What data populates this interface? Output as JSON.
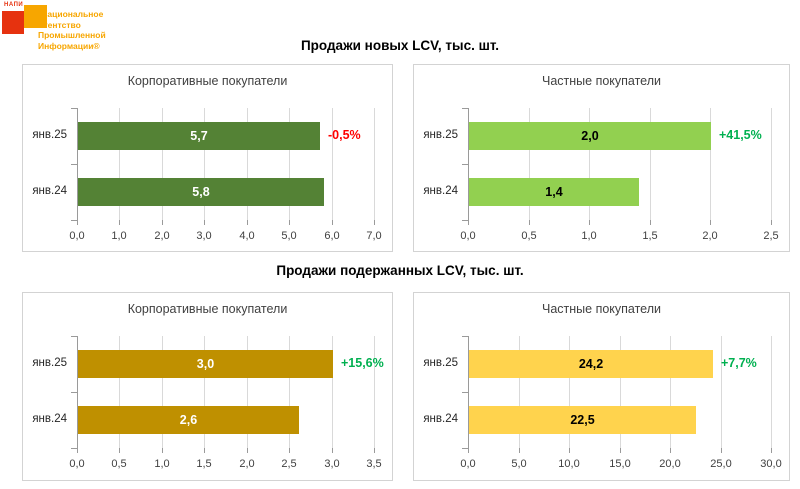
{
  "logo": {
    "mark_text": "НАПИ",
    "lines": [
      "Национальное",
      "Агентство",
      "Промышленной",
      "Информации®"
    ],
    "red": "#E6320F",
    "orange": "#F7A600"
  },
  "sections": [
    {
      "title": "Продажи новых LCV, тыс. шт."
    },
    {
      "title": "Продажи подержанных LCV, тыс. шт."
    }
  ],
  "chart_data": [
    {
      "type": "bar",
      "section": "Продажи новых LCV, тыс. шт.",
      "title": "Корпоративные покупатели",
      "categories": [
        "янв.25",
        "янв.24"
      ],
      "values": [
        5.7,
        5.8
      ],
      "value_labels": [
        "5,7",
        "5,8"
      ],
      "change_label": "-0,5%",
      "change_color": "#FF0000",
      "bar_color": "#548235",
      "value_text_color": "#FFFFFF",
      "xlim": [
        0,
        7
      ],
      "tick_labels": [
        "0,0",
        "1,0",
        "2,0",
        "3,0",
        "4,0",
        "5,0",
        "6,0",
        "7,0"
      ],
      "grid": true,
      "legend": "none"
    },
    {
      "type": "bar",
      "section": "Продажи новых LCV, тыс. шт.",
      "title": "Частные покупатели",
      "categories": [
        "янв.25",
        "янв.24"
      ],
      "values": [
        2.0,
        1.4
      ],
      "value_labels": [
        "2,0",
        "1,4"
      ],
      "change_label": "+41,5%",
      "change_color": "#00B050",
      "bar_color": "#92D050",
      "value_text_color": "#000000",
      "xlim": [
        0,
        2.5
      ],
      "tick_labels": [
        "0,0",
        "0,5",
        "1,0",
        "1,5",
        "2,0",
        "2,5"
      ],
      "grid": true,
      "legend": "none"
    },
    {
      "type": "bar",
      "section": "Продажи подержанных LCV, тыс. шт.",
      "title": "Корпоративные покупатели",
      "categories": [
        "янв.25",
        "янв.24"
      ],
      "values": [
        3.0,
        2.6
      ],
      "value_labels": [
        "3,0",
        "2,6"
      ],
      "change_label": "+15,6%",
      "change_color": "#00B050",
      "bar_color": "#BF9000",
      "value_text_color": "#FFFFFF",
      "xlim": [
        0,
        3.5
      ],
      "tick_labels": [
        "0,0",
        "0,5",
        "1,0",
        "1,5",
        "2,0",
        "2,5",
        "3,0",
        "3,5"
      ],
      "grid": true,
      "legend": "none"
    },
    {
      "type": "bar",
      "section": "Продажи подержанных LCV, тыс. шт.",
      "title": "Частные покупатели",
      "categories": [
        "янв.25",
        "янв.24"
      ],
      "values": [
        24.2,
        22.5
      ],
      "value_labels": [
        "24,2",
        "22,5"
      ],
      "change_label": "+7,7%",
      "change_color": "#00B050",
      "bar_color": "#FFD34D",
      "value_text_color": "#000000",
      "xlim": [
        0,
        30
      ],
      "tick_labels": [
        "0,0",
        "5,0",
        "10,0",
        "15,0",
        "20,0",
        "25,0",
        "30,0"
      ],
      "grid": true,
      "legend": "none"
    }
  ]
}
